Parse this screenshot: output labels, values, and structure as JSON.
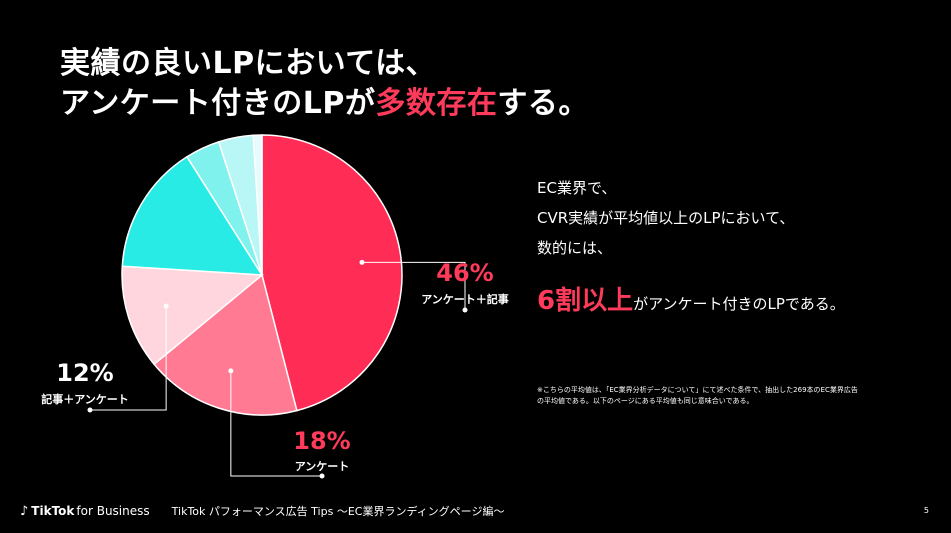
{
  "title": {
    "line1": "実績の良いLPにおいては、",
    "line2_a": "アンケート付きのLPが",
    "line2_accent": "多数存在",
    "line2_b": "する。"
  },
  "body": {
    "line1": "EC業界で、",
    "line2": "CVR実績が平均値以上のLPにおいて、",
    "line3": "数的には、",
    "line4_big": "6割以上",
    "line4_rest": "がアンケート付きのLPである。"
  },
  "note": {
    "line1": "※こちらの平均値は、「EC業界分析データについて」にて述べた条件で、抽出した269本のEC業界広告",
    "line2": "の平均値である。以下のページにある平均値も同じ意味合いである。"
  },
  "footer": {
    "brand": "TikTok",
    "brand_sub": "for Business",
    "text": "TikTok パフォーマンス広告 Tips 〜EC業界ランディングページ編〜",
    "page": "5"
  },
  "chart_data": {
    "type": "pie",
    "slices": [
      {
        "label": "アンケート＋記事",
        "value": 46,
        "display": "46%",
        "color": "#ff2d55"
      },
      {
        "label": "アンケート",
        "value": 18,
        "display": "18%",
        "color": "#ff7a92"
      },
      {
        "label": "記事＋アンケート",
        "value": 12,
        "display": "12%",
        "color": "#ffd6dd"
      },
      {
        "label": "",
        "value": 15,
        "display": "",
        "color": "#29ebe6"
      },
      {
        "label": "",
        "value": 4,
        "display": "",
        "color": "#7ff2ee"
      },
      {
        "label": "",
        "value": 4,
        "display": "",
        "color": "#b8f7f5"
      },
      {
        "label": "",
        "value": 1,
        "display": "",
        "color": "#e6fbfb"
      }
    ]
  }
}
